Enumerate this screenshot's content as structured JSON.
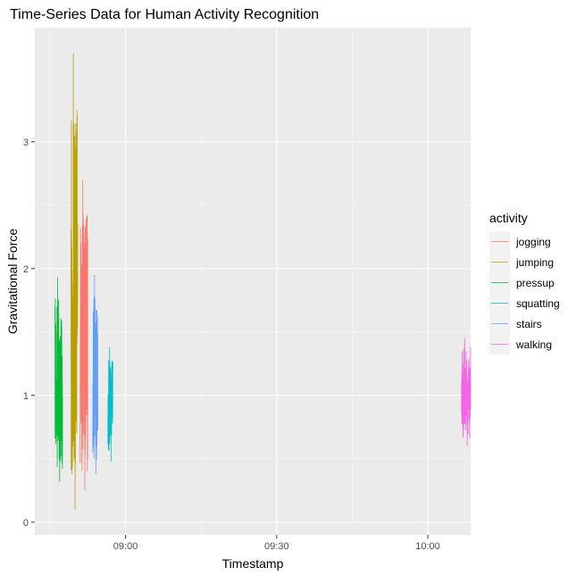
{
  "chart_data": {
    "type": "line",
    "title": "Time-Series Data for Human Activity Recognition",
    "xlabel": "Timestamp",
    "ylabel": "Gravitational Force",
    "x_tick_labels": [
      "09:00",
      "09:30",
      "10:00"
    ],
    "y_tick_labels": [
      "0",
      "1",
      "2",
      "3"
    ],
    "xlim": [
      "08:42:00",
      "10:08:30"
    ],
    "ylim": [
      -0.1,
      3.9
    ],
    "grid": true,
    "legend": {
      "title": "activity",
      "position": "right"
    },
    "series": [
      {
        "name": "jogging",
        "color": "#F8766D",
        "x_range": [
          "08:51:00",
          "08:52:30"
        ],
        "y_min": 0.25,
        "y_max": 2.7,
        "y_center": 1.1
      },
      {
        "name": "jumping",
        "color": "#B79F00",
        "x_range": [
          "08:49:10",
          "08:50:30"
        ],
        "y_min": 0.1,
        "y_max": 3.7,
        "y_center": 1.6
      },
      {
        "name": "pressup",
        "color": "#00BA38",
        "x_range": [
          "08:46:00",
          "08:47:30"
        ],
        "y_min": 0.32,
        "y_max": 1.93,
        "y_center": 1.0
      },
      {
        "name": "squatting",
        "color": "#00BFC4",
        "x_range": [
          "08:56:30",
          "08:57:30"
        ],
        "y_min": 0.48,
        "y_max": 1.38,
        "y_center": 0.95
      },
      {
        "name": "stairs",
        "color": "#619CFF",
        "x_range": [
          "08:53:30",
          "08:54:30"
        ],
        "y_min": 0.38,
        "y_max": 1.95,
        "y_center": 1.1
      },
      {
        "name": "walking",
        "color": "#F564E3",
        "x_range": [
          "10:06:40",
          "10:08:30"
        ],
        "y_min": 0.6,
        "y_max": 1.45,
        "y_center": 1.0
      }
    ]
  }
}
